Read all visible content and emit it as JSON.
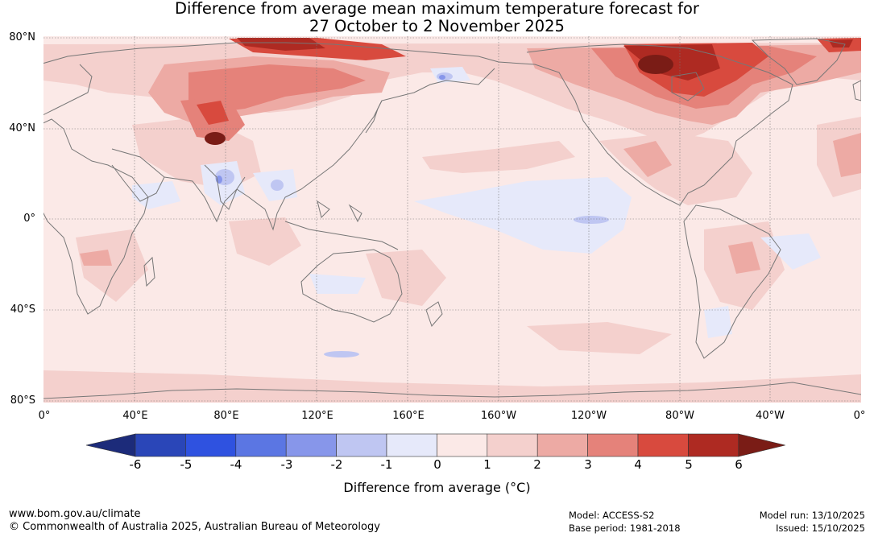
{
  "title": {
    "line1": "Difference from average mean maximum temperature forecast for",
    "line2": "27 October to 2 November 2025"
  },
  "map": {
    "lat_labels": [
      "80°N",
      "40°N",
      "0°",
      "40°S",
      "80°S"
    ],
    "lon_labels": [
      "0°",
      "40°E",
      "80°E",
      "120°E",
      "160°E",
      "160°W",
      "120°W",
      "80°W",
      "40°W",
      "0°"
    ],
    "background_color": "#fbe9e7",
    "coast_color": "#777777"
  },
  "colorbar": {
    "title": "Difference from average (°C)",
    "ticks": [
      "-6",
      "-5",
      "-4",
      "-3",
      "-2",
      "-1",
      "0",
      "1",
      "2",
      "3",
      "4",
      "5",
      "6"
    ],
    "colors": [
      "#1c2b7a",
      "#2a46b8",
      "#2f52e0",
      "#5b76e3",
      "#8796ea",
      "#bfc6f2",
      "#e6e9fa",
      "#fbe9e7",
      "#f4d0cd",
      "#edaaa4",
      "#e5827a",
      "#d84a3e",
      "#ae2a22",
      "#7a1c16"
    ]
  },
  "footer": {
    "url": "www.bom.gov.au/climate",
    "copyright": "© Commonwealth of Australia 2025, Australian Bureau of Meteorology",
    "model": "Model: ACCESS-S2",
    "base_period": "Base period: 1981-2018",
    "model_run": "Model run: 13/10/2025",
    "issued": "Issued: 15/10/2025"
  }
}
